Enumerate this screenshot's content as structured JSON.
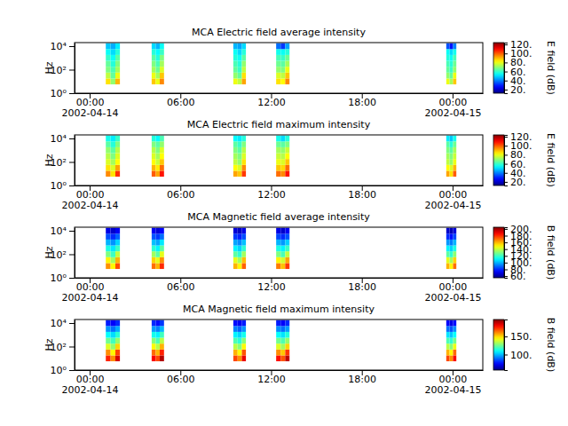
{
  "chart_data": [
    {
      "type": "heatmap",
      "title": "MCA  Electric field average intensity",
      "y_label": "Hz",
      "log": "y",
      "xlim": [
        "2002-04-13T23:00",
        "2002-04-15T02:00"
      ],
      "xticks": [
        {
          "value": "2002-04-14T00:00",
          "label": "00:00\n2002-04-14"
        },
        {
          "value": "2002-04-14T06:00",
          "label": "06:00"
        },
        {
          "value": "2002-04-14T12:00",
          "label": "12:00"
        },
        {
          "value": "2002-04-14T18:00",
          "label": "18:00"
        },
        {
          "value": "2002-04-15T00:00",
          "label": "00:00\n2002-04-15"
        }
      ],
      "ylim": [
        1,
        20000
      ],
      "yticks": [
        {
          "value": 1,
          "label": "10⁰"
        },
        {
          "value": 100,
          "label": "10²"
        },
        {
          "value": 10000,
          "label": "10⁴"
        }
      ],
      "x_bins": [
        "2002-04-14T01:04",
        "2002-04-14T01:23",
        "2002-04-14T01:42",
        "2002-04-14T02:00",
        "2002-04-14T04:06",
        "2002-04-14T04:22",
        "2002-04-14T04:38",
        "2002-04-14T04:55",
        "2002-04-14T09:30",
        "2002-04-14T09:47",
        "2002-04-14T10:04",
        "2002-04-14T10:20",
        "2002-04-14T12:20",
        "2002-04-14T12:38",
        "2002-04-14T12:56",
        "2002-04-14T13:13",
        "2002-04-14T23:35",
        "2002-04-14T23:48",
        "2002-04-15T00:02",
        "2002-04-15T00:15"
      ],
      "y_bins": [
        5.62,
        17.8,
        56.2,
        178,
        562,
        1780,
        5620,
        17800
      ],
      "cells": [
        [
          85,
          70,
          90,
          null,
          88,
          80,
          95,
          null,
          80,
          75,
          92,
          null,
          85,
          82,
          95,
          null,
          80,
          72,
          88
        ],
        [
          75,
          65,
          80,
          null,
          80,
          72,
          88,
          null,
          70,
          65,
          85,
          null,
          78,
          75,
          88,
          null,
          70,
          65,
          80
        ],
        [
          68,
          62,
          72,
          null,
          72,
          66,
          78,
          null,
          65,
          60,
          75,
          null,
          70,
          68,
          80,
          null,
          65,
          60,
          70
        ],
        [
          65,
          58,
          68,
          null,
          68,
          62,
          72,
          null,
          62,
          58,
          70,
          null,
          66,
          64,
          72,
          null,
          62,
          58,
          66
        ],
        [
          60,
          55,
          64,
          null,
          64,
          58,
          68,
          null,
          58,
          55,
          64,
          null,
          62,
          60,
          66,
          null,
          58,
          55,
          62
        ],
        [
          55,
          50,
          58,
          null,
          58,
          54,
          60,
          null,
          55,
          50,
          58,
          null,
          56,
          55,
          58,
          null,
          55,
          50,
          56
        ],
        [
          48,
          45,
          52,
          null,
          50,
          46,
          55,
          null,
          46,
          44,
          50,
          null,
          38,
          32,
          44,
          null,
          35,
          28,
          40
        ]
      ],
      "colorbar_range": [
        12,
        124
      ],
      "colorbar_ticks": [
        {
          "value": 20,
          "label": "20."
        },
        {
          "value": 40,
          "label": "40."
        },
        {
          "value": 60,
          "label": "60."
        },
        {
          "value": 80,
          "label": "80."
        },
        {
          "value": 100,
          "label": "100."
        },
        {
          "value": 120,
          "label": "120."
        }
      ],
      "colorbar_label": "E field (dB)"
    },
    {
      "type": "heatmap",
      "title": "MCA  Electric field maximum intensity",
      "y_label": "Hz",
      "log": "y",
      "xlim": [
        "2002-04-13T23:00",
        "2002-04-15T02:00"
      ],
      "xticks": [
        {
          "value": "2002-04-14T00:00",
          "label": "00:00\n2002-04-14"
        },
        {
          "value": "2002-04-14T06:00",
          "label": "06:00"
        },
        {
          "value": "2002-04-14T12:00",
          "label": "12:00"
        },
        {
          "value": "2002-04-14T18:00",
          "label": "18:00"
        },
        {
          "value": "2002-04-15T00:00",
          "label": "00:00\n2002-04-15"
        }
      ],
      "ylim": [
        1,
        20000
      ],
      "yticks": [
        {
          "value": 1,
          "label": "10⁰"
        },
        {
          "value": 100,
          "label": "10²"
        },
        {
          "value": 10000,
          "label": "10⁴"
        }
      ],
      "x_bins": [
        "2002-04-14T01:04",
        "2002-04-14T01:23",
        "2002-04-14T01:42",
        "2002-04-14T02:00",
        "2002-04-14T04:06",
        "2002-04-14T04:22",
        "2002-04-14T04:38",
        "2002-04-14T04:55",
        "2002-04-14T09:30",
        "2002-04-14T09:47",
        "2002-04-14T10:04",
        "2002-04-14T10:20",
        "2002-04-14T12:20",
        "2002-04-14T12:38",
        "2002-04-14T12:56",
        "2002-04-14T13:13",
        "2002-04-14T23:35",
        "2002-04-14T23:48",
        "2002-04-15T00:02",
        "2002-04-15T00:15"
      ],
      "y_bins": [
        5.62,
        17.8,
        56.2,
        178,
        562,
        1780,
        5620,
        17800
      ],
      "cells": [
        [
          95,
          85,
          105,
          null,
          100,
          92,
          108,
          null,
          92,
          88,
          104,
          null,
          98,
          95,
          108,
          null,
          92,
          85,
          100
        ],
        [
          85,
          78,
          92,
          null,
          90,
          84,
          98,
          null,
          82,
          78,
          95,
          null,
          88,
          86,
          98,
          null,
          82,
          78,
          90
        ],
        [
          78,
          72,
          82,
          null,
          82,
          76,
          88,
          null,
          75,
          70,
          85,
          null,
          80,
          78,
          88,
          null,
          75,
          70,
          80
        ],
        [
          74,
          68,
          78,
          null,
          78,
          72,
          82,
          null,
          72,
          68,
          78,
          null,
          76,
          74,
          82,
          null,
          72,
          68,
          76
        ],
        [
          70,
          64,
          74,
          null,
          74,
          68,
          78,
          null,
          68,
          64,
          74,
          null,
          72,
          70,
          76,
          null,
          68,
          64,
          72
        ],
        [
          64,
          58,
          68,
          null,
          68,
          64,
          70,
          null,
          64,
          60,
          68,
          null,
          66,
          64,
          68,
          null,
          64,
          58,
          66
        ],
        [
          56,
          52,
          60,
          null,
          58,
          54,
          62,
          null,
          54,
          52,
          58,
          null,
          56,
          50,
          58,
          null,
          52,
          48,
          56
        ]
      ],
      "colorbar_range": [
        12,
        124
      ],
      "colorbar_ticks": [
        {
          "value": 20,
          "label": "20."
        },
        {
          "value": 40,
          "label": "40."
        },
        {
          "value": 60,
          "label": "60."
        },
        {
          "value": 80,
          "label": "80."
        },
        {
          "value": 100,
          "label": "100."
        },
        {
          "value": 120,
          "label": "120."
        }
      ],
      "colorbar_label": "E field (dB)"
    },
    {
      "type": "heatmap",
      "title": "MCA  Magnetic field average intensity",
      "y_label": "Hz",
      "log": "y",
      "xlim": [
        "2002-04-13T23:00",
        "2002-04-15T02:00"
      ],
      "xticks": [
        {
          "value": "2002-04-14T00:00",
          "label": "00:00\n2002-04-14"
        },
        {
          "value": "2002-04-14T06:00",
          "label": "06:00"
        },
        {
          "value": "2002-04-14T12:00",
          "label": "12:00"
        },
        {
          "value": "2002-04-14T18:00",
          "label": "18:00"
        },
        {
          "value": "2002-04-15T00:00",
          "label": "00:00\n2002-04-15"
        }
      ],
      "ylim": [
        1,
        20000
      ],
      "yticks": [
        {
          "value": 1,
          "label": "10⁰"
        },
        {
          "value": 100,
          "label": "10²"
        },
        {
          "value": 10000,
          "label": "10⁴"
        }
      ],
      "x_bins": [
        "2002-04-14T01:04",
        "2002-04-14T01:23",
        "2002-04-14T01:42",
        "2002-04-14T02:00",
        "2002-04-14T04:06",
        "2002-04-14T04:22",
        "2002-04-14T04:38",
        "2002-04-14T04:55",
        "2002-04-14T09:30",
        "2002-04-14T09:47",
        "2002-04-14T10:04",
        "2002-04-14T10:20",
        "2002-04-14T12:20",
        "2002-04-14T12:38",
        "2002-04-14T12:56",
        "2002-04-14T13:13",
        "2002-04-14T23:35",
        "2002-04-14T23:48",
        "2002-04-15T00:02",
        "2002-04-15T00:15"
      ],
      "y_bins": [
        5.62,
        17.8,
        56.2,
        178,
        562,
        1780,
        5620,
        17800
      ],
      "cells": [
        [
          165,
          150,
          175,
          null,
          170,
          160,
          180,
          null,
          160,
          150,
          172,
          null,
          168,
          158,
          178,
          null,
          160,
          150,
          170
        ],
        [
          150,
          135,
          160,
          null,
          155,
          145,
          165,
          null,
          145,
          135,
          158,
          null,
          150,
          142,
          162,
          null,
          145,
          135,
          155
        ],
        [
          130,
          120,
          140,
          null,
          135,
          125,
          145,
          null,
          125,
          118,
          135,
          null,
          130,
          122,
          140,
          null,
          125,
          118,
          132
        ],
        [
          115,
          108,
          120,
          null,
          118,
          110,
          125,
          null,
          110,
          105,
          118,
          null,
          115,
          110,
          120,
          null,
          110,
          105,
          115
        ],
        [
          100,
          95,
          105,
          null,
          102,
          98,
          108,
          null,
          98,
          94,
          102,
          null,
          100,
          96,
          104,
          null,
          96,
          92,
          100
        ],
        [
          85,
          80,
          88,
          null,
          86,
          82,
          90,
          null,
          82,
          78,
          85,
          null,
          84,
          80,
          86,
          null,
          80,
          76,
          84
        ],
        [
          70,
          66,
          72,
          null,
          72,
          68,
          74,
          null,
          68,
          65,
          70,
          null,
          70,
          66,
          72,
          null,
          66,
          63,
          68
        ]
      ],
      "colorbar_range": [
        55,
        205
      ],
      "colorbar_ticks": [
        {
          "value": 60,
          "label": "60."
        },
        {
          "value": 80,
          "label": "80."
        },
        {
          "value": 100,
          "label": "100."
        },
        {
          "value": 120,
          "label": "120."
        },
        {
          "value": 140,
          "label": "140."
        },
        {
          "value": 160,
          "label": "160."
        },
        {
          "value": 180,
          "label": "180."
        },
        {
          "value": 200,
          "label": "200."
        }
      ],
      "colorbar_label": "B field (dB)"
    },
    {
      "type": "heatmap",
      "title": "MCA  Magnetic field maximum intensity",
      "y_label": "Hz",
      "log": "y",
      "xlim": [
        "2002-04-13T23:00",
        "2002-04-15T02:00"
      ],
      "xticks": [
        {
          "value": "2002-04-14T00:00",
          "label": "00:00\n2002-04-14"
        },
        {
          "value": "2002-04-14T06:00",
          "label": "06:00"
        },
        {
          "value": "2002-04-14T12:00",
          "label": "12:00"
        },
        {
          "value": "2002-04-14T18:00",
          "label": "18:00"
        },
        {
          "value": "2002-04-15T00:00",
          "label": "00:00\n2002-04-15"
        }
      ],
      "ylim": [
        1,
        20000
      ],
      "yticks": [
        {
          "value": 1,
          "label": "10⁰"
        },
        {
          "value": 100,
          "label": "10²"
        },
        {
          "value": 10000,
          "label": "10⁴"
        }
      ],
      "x_bins": [
        "2002-04-14T01:04",
        "2002-04-14T01:23",
        "2002-04-14T01:42",
        "2002-04-14T02:00",
        "2002-04-14T04:06",
        "2002-04-14T04:22",
        "2002-04-14T04:38",
        "2002-04-14T04:55",
        "2002-04-14T09:30",
        "2002-04-14T09:47",
        "2002-04-14T10:04",
        "2002-04-14T10:20",
        "2002-04-14T12:20",
        "2002-04-14T12:38",
        "2002-04-14T12:56",
        "2002-04-14T13:13",
        "2002-04-14T23:35",
        "2002-04-14T23:48",
        "2002-04-15T00:02",
        "2002-04-15T00:15"
      ],
      "y_bins": [
        5.62,
        17.8,
        56.2,
        178,
        562,
        1780,
        5620,
        17800
      ],
      "cells": [
        [
          175,
          160,
          185,
          null,
          180,
          170,
          190,
          null,
          170,
          160,
          182,
          null,
          178,
          168,
          188,
          null,
          170,
          160,
          180
        ],
        [
          160,
          145,
          170,
          null,
          165,
          155,
          175,
          null,
          155,
          145,
          168,
          null,
          160,
          152,
          172,
          null,
          155,
          145,
          165
        ],
        [
          140,
          130,
          150,
          null,
          145,
          135,
          155,
          null,
          135,
          128,
          145,
          null,
          140,
          132,
          150,
          null,
          135,
          128,
          142
        ],
        [
          125,
          118,
          130,
          null,
          128,
          120,
          135,
          null,
          120,
          115,
          128,
          null,
          125,
          120,
          130,
          null,
          120,
          115,
          125
        ],
        [
          110,
          105,
          115,
          null,
          112,
          108,
          118,
          null,
          108,
          104,
          112,
          null,
          110,
          106,
          114,
          null,
          106,
          102,
          110
        ],
        [
          95,
          90,
          98,
          null,
          96,
          92,
          100,
          null,
          92,
          88,
          95,
          null,
          94,
          90,
          96,
          null,
          90,
          86,
          94
        ],
        [
          78,
          74,
          80,
          null,
          80,
          76,
          82,
          null,
          76,
          73,
          78,
          null,
          78,
          74,
          80,
          null,
          74,
          71,
          76
        ]
      ],
      "colorbar_range": [
        57,
        197
      ],
      "colorbar_ticks": [
        {
          "value": 100,
          "label": "100."
        },
        {
          "value": 150,
          "label": "150."
        }
      ],
      "colorbar_label": "B field (dB)"
    }
  ]
}
